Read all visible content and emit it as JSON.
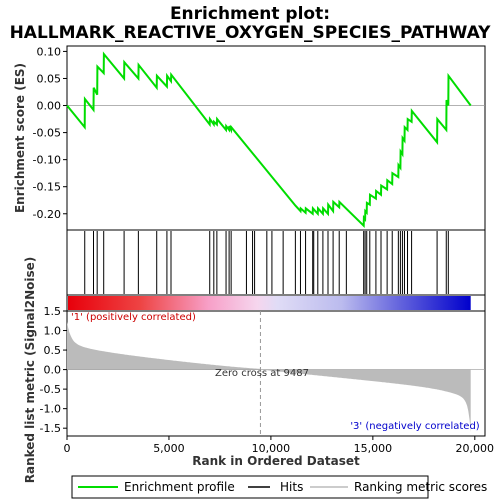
{
  "chart_data": {
    "type": "line",
    "title_line1": "Enrichment plot:",
    "title_line2": "HALLMARK_REACTIVE_OXYGEN_SPECIES_PATHWAY",
    "es_panel": {
      "ylabel": "Enrichment score (ES)",
      "ylim": [
        -0.23,
        0.11
      ],
      "yticks": [
        "0.10",
        "0.05",
        "0.00",
        "-0.05",
        "-0.10",
        "-0.15",
        "-0.20"
      ],
      "ytick_values": [
        0.1,
        0.05,
        0.0,
        -0.05,
        -0.1,
        -0.15,
        -0.2
      ],
      "color": "#00dd00",
      "points": [
        [
          0,
          0.0
        ],
        [
          870,
          -0.04
        ],
        [
          880,
          0.012
        ],
        [
          1300,
          -0.008
        ],
        [
          1310,
          0.033
        ],
        [
          1480,
          0.02
        ],
        [
          1490,
          0.072
        ],
        [
          1800,
          0.06
        ],
        [
          1810,
          0.095
        ],
        [
          2800,
          0.05
        ],
        [
          2810,
          0.08
        ],
        [
          3500,
          0.05
        ],
        [
          3510,
          0.075
        ],
        [
          4400,
          0.033
        ],
        [
          4410,
          0.055
        ],
        [
          4900,
          0.035
        ],
        [
          4910,
          0.055
        ],
        [
          5100,
          0.045
        ],
        [
          5110,
          0.057
        ],
        [
          7000,
          -0.035
        ],
        [
          7010,
          -0.025
        ],
        [
          7200,
          -0.035
        ],
        [
          7210,
          -0.03
        ],
        [
          7350,
          -0.035
        ],
        [
          7360,
          -0.025
        ],
        [
          7800,
          -0.045
        ],
        [
          7810,
          -0.038
        ],
        [
          7950,
          -0.045
        ],
        [
          7960,
          -0.038
        ],
        [
          8050,
          -0.045
        ],
        [
          8060,
          -0.04
        ],
        [
          11200,
          -0.185
        ],
        [
          11450,
          -0.195
        ],
        [
          11460,
          -0.19
        ],
        [
          11700,
          -0.198
        ],
        [
          11710,
          -0.19
        ],
        [
          12050,
          -0.2
        ],
        [
          12060,
          -0.19
        ],
        [
          12300,
          -0.2
        ],
        [
          12310,
          -0.19
        ],
        [
          12550,
          -0.2
        ],
        [
          12560,
          -0.19
        ],
        [
          12800,
          -0.2
        ],
        [
          12810,
          -0.183
        ],
        [
          13050,
          -0.195
        ],
        [
          13060,
          -0.178
        ],
        [
          13350,
          -0.188
        ],
        [
          13360,
          -0.178
        ],
        [
          14550,
          -0.222
        ],
        [
          14560,
          -0.207
        ],
        [
          14620,
          -0.21
        ],
        [
          14630,
          -0.195
        ],
        [
          14700,
          -0.198
        ],
        [
          14710,
          -0.18
        ],
        [
          14850,
          -0.183
        ],
        [
          14860,
          -0.165
        ],
        [
          15150,
          -0.172
        ],
        [
          15160,
          -0.158
        ],
        [
          15400,
          -0.165
        ],
        [
          15410,
          -0.148
        ],
        [
          15700,
          -0.155
        ],
        [
          15710,
          -0.138
        ],
        [
          15950,
          -0.145
        ],
        [
          15960,
          -0.125
        ],
        [
          16250,
          -0.132
        ],
        [
          16260,
          -0.11
        ],
        [
          16350,
          -0.115
        ],
        [
          16360,
          -0.085
        ],
        [
          16450,
          -0.09
        ],
        [
          16460,
          -0.06
        ],
        [
          16550,
          -0.065
        ],
        [
          16560,
          -0.04
        ],
        [
          16700,
          -0.045
        ],
        [
          16710,
          -0.025
        ],
        [
          16900,
          -0.03
        ],
        [
          16910,
          -0.01
        ],
        [
          18150,
          -0.068
        ],
        [
          18160,
          -0.025
        ],
        [
          18600,
          -0.045
        ],
        [
          18610,
          0.01
        ],
        [
          18700,
          0.0
        ],
        [
          18710,
          0.055
        ],
        [
          19800,
          0.0
        ]
      ]
    },
    "hits": [
      870,
      1300,
      1480,
      1800,
      2800,
      3500,
      4400,
      4900,
      5100,
      7000,
      7200,
      7350,
      7800,
      7950,
      8050,
      8800,
      9100,
      9200,
      9800,
      10050,
      10600,
      11200,
      11450,
      11700,
      12050,
      12100,
      12300,
      12550,
      12800,
      13050,
      13350,
      13700,
      14550,
      14620,
      14700,
      14850,
      15150,
      15400,
      15700,
      15950,
      16250,
      16350,
      16450,
      16550,
      16700,
      16900,
      18150,
      18600,
      18700
    ],
    "metric_panel": {
      "ylabel": "Ranked list metric (Signal2Noise)",
      "xlabel": "Rank in Ordered Dataset",
      "ylim": [
        -1.7,
        1.5
      ],
      "yticks": [
        "1.5",
        "1.0",
        "0.5",
        "0.0",
        "-0.5",
        "-1.0",
        "-1.5"
      ],
      "ytick_values": [
        1.5,
        1.0,
        0.5,
        0.0,
        -0.5,
        -1.0,
        -1.5
      ],
      "xlim": [
        0,
        20500
      ],
      "xticks": [
        "0",
        "5,000",
        "10,000",
        "15,000",
        "20,000"
      ],
      "xtick_values": [
        0,
        5000,
        10000,
        15000,
        20000
      ],
      "n_genes": 19800,
      "zero_cross": 9487,
      "zero_cross_label": "Zero cross at 9487",
      "pos_label": "'1' (positively correlated)",
      "neg_label": "'3' (negatively correlated)",
      "pos_color": "#e8000b",
      "neg_color": "#0000cc",
      "fill_color": "#bbbbbb"
    },
    "legend": [
      {
        "label": "Enrichment profile",
        "color": "#00dd00"
      },
      {
        "label": "Hits",
        "color": "#000000"
      },
      {
        "label": "Ranking metric scores",
        "color": "#bbbbbb"
      }
    ]
  }
}
